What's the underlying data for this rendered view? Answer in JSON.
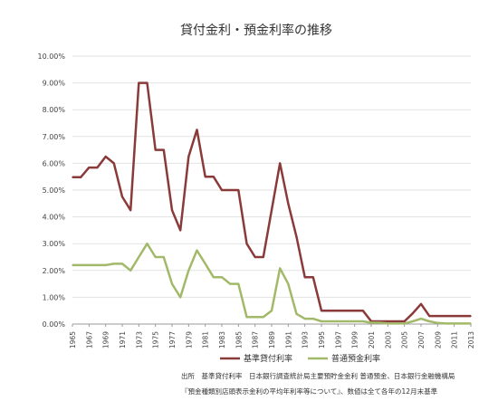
{
  "chart_data": {
    "type": "line",
    "title": "貸付金利・預金利率の推移",
    "xlabel": "",
    "ylabel": "",
    "ylim": [
      0,
      10
    ],
    "y_ticks": [
      "0.00%",
      "1.00%",
      "2.00%",
      "3.00%",
      "4.00%",
      "5.00%",
      "6.00%",
      "7.00%",
      "8.00%",
      "9.00%",
      "10.00%"
    ],
    "x_tick_labels": [
      "1965",
      "1967",
      "1969",
      "1971",
      "1973",
      "1975",
      "1977",
      "1979",
      "1981",
      "1983",
      "1985",
      "1987",
      "1989",
      "1991",
      "1993",
      "1995",
      "1997",
      "1999",
      "2001",
      "2003",
      "2005",
      "2007",
      "2009",
      "2011",
      "2013"
    ],
    "grid": "horizontal",
    "legend_position": "bottom",
    "x": [
      1965,
      1966,
      1967,
      1968,
      1969,
      1970,
      1971,
      1972,
      1973,
      1974,
      1975,
      1976,
      1977,
      1978,
      1979,
      1980,
      1981,
      1982,
      1983,
      1984,
      1985,
      1986,
      1987,
      1988,
      1989,
      1990,
      1991,
      1992,
      1993,
      1994,
      1995,
      1996,
      1997,
      1998,
      1999,
      2000,
      2001,
      2002,
      2003,
      2004,
      2005,
      2006,
      2007,
      2008,
      2009,
      2010,
      2011,
      2012,
      2013
    ],
    "series": [
      {
        "name": "基準貸付利率",
        "color": "#8b3a3a",
        "values": [
          5.48,
          5.48,
          5.84,
          5.84,
          6.25,
          6.0,
          4.75,
          4.25,
          9.0,
          9.0,
          6.5,
          6.5,
          4.25,
          3.5,
          6.25,
          7.25,
          5.5,
          5.5,
          5.0,
          5.0,
          5.0,
          3.0,
          2.5,
          2.5,
          4.25,
          6.0,
          4.5,
          3.25,
          1.75,
          1.75,
          0.5,
          0.5,
          0.5,
          0.5,
          0.5,
          0.5,
          0.1,
          0.1,
          0.1,
          0.1,
          0.1,
          0.4,
          0.75,
          0.3,
          0.3,
          0.3,
          0.3,
          0.3,
          0.3
        ]
      },
      {
        "name": "普通預金利率",
        "color": "#a3b96a",
        "values": [
          2.2,
          2.2,
          2.2,
          2.2,
          2.2,
          2.25,
          2.25,
          2.0,
          2.5,
          3.0,
          2.5,
          2.5,
          1.5,
          1.0,
          2.0,
          2.75,
          2.25,
          1.75,
          1.75,
          1.5,
          1.5,
          0.26,
          0.26,
          0.26,
          0.5,
          2.08,
          1.5,
          0.38,
          0.2,
          0.2,
          0.1,
          0.1,
          0.1,
          0.1,
          0.1,
          0.1,
          0.05,
          0.05,
          0.02,
          0.02,
          0.02,
          0.1,
          0.2,
          0.1,
          0.04,
          0.02,
          0.02,
          0.02,
          0.02
        ]
      }
    ]
  },
  "source_note": {
    "line1": "出所　基準貸付利率　日本銀行調査統計局主要預貯金金利 普通預金、日本銀行金融機構局",
    "line2": "『預金種類別店頭表示金利の平均年利率等について』、数値は全て各年の12月末基準"
  }
}
